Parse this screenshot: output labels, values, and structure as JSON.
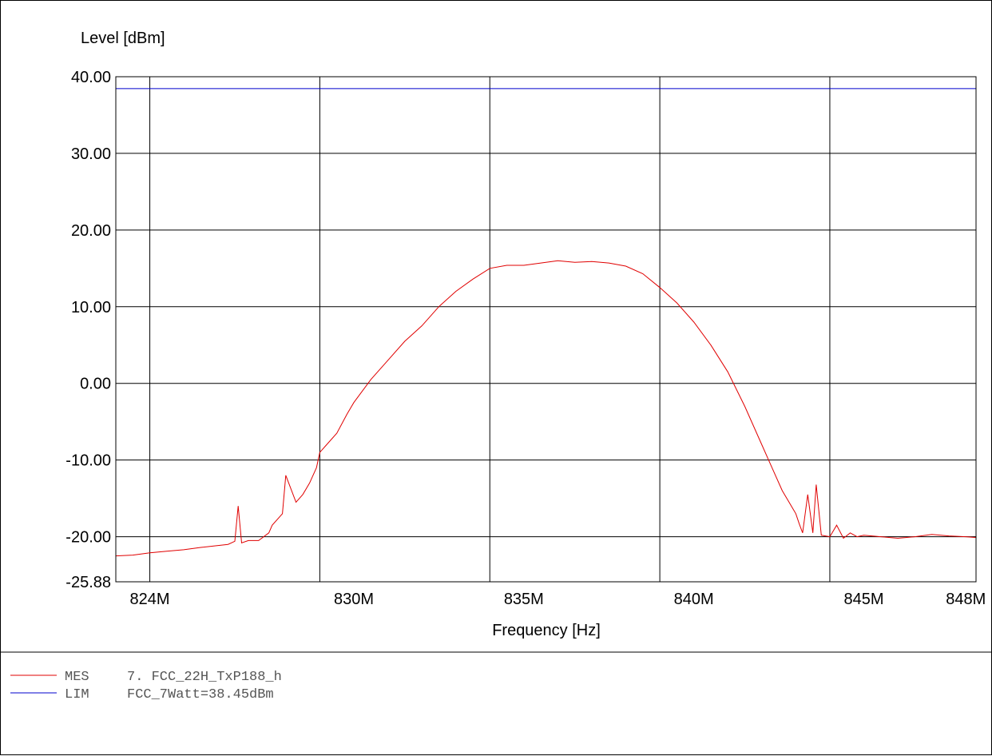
{
  "chart_data": {
    "type": "line",
    "ylabel": "Level [dBm]",
    "xlabel": "Frequency [Hz]",
    "ylim": [
      -25.88,
      40.0
    ],
    "xlim": [
      823.0,
      848.3
    ],
    "x_unit": "MHz",
    "y_ticks": [
      40.0,
      30.0,
      20.0,
      10.0,
      0.0,
      -10.0,
      -20.0,
      -25.88
    ],
    "y_tick_labels": [
      "40.00",
      "30.00",
      "20.00",
      "10.00",
      "0.00",
      "-10.00",
      "-20.00",
      "-25.88"
    ],
    "x_ticks": [
      824,
      830,
      835,
      840,
      845,
      848
    ],
    "x_tick_labels": [
      "824M",
      "830M",
      "835M",
      "840M",
      "845M",
      "848M"
    ],
    "x_gridlines": [
      824,
      829,
      834,
      839,
      844
    ],
    "y_gridlines": [
      30.0,
      20.0,
      10.0,
      0.0,
      -10.0,
      -20.0
    ],
    "grid": true,
    "legend_position": "bottom-left",
    "series": [
      {
        "name": "MES",
        "color": "#e00000",
        "x": [
          823.0,
          823.5,
          824.0,
          824.5,
          825.0,
          825.5,
          825.9,
          826.3,
          826.5,
          826.6,
          826.7,
          826.9,
          827.2,
          827.5,
          827.6,
          827.9,
          828.0,
          828.3,
          828.5,
          828.7,
          828.9,
          829.0,
          829.2,
          829.5,
          829.8,
          830.0,
          830.5,
          831.0,
          831.5,
          832.0,
          832.5,
          833.0,
          833.5,
          834.0,
          834.5,
          835.0,
          835.5,
          836.0,
          836.5,
          837.0,
          837.5,
          838.0,
          838.5,
          839.0,
          839.5,
          840.0,
          840.5,
          841.0,
          841.5,
          842.0,
          842.3,
          842.6,
          842.8,
          843.0,
          843.1,
          843.2,
          843.35,
          843.5,
          843.6,
          843.75,
          844.0,
          844.2,
          844.4,
          844.6,
          844.8,
          845.0,
          845.5,
          846.0,
          846.5,
          847.0,
          847.5,
          848.0,
          848.3
        ],
        "y": [
          -22.5,
          -22.4,
          -22.1,
          -21.9,
          -21.7,
          -21.4,
          -21.2,
          -21.0,
          -20.6,
          -16.0,
          -20.8,
          -20.5,
          -20.5,
          -19.5,
          -18.5,
          -17.0,
          -12.0,
          -15.5,
          -14.5,
          -13.0,
          -11.0,
          -9.0,
          -8.0,
          -6.5,
          -4.0,
          -2.5,
          0.5,
          3.0,
          5.5,
          7.5,
          10.0,
          12.0,
          13.6,
          15.0,
          15.4,
          15.4,
          15.7,
          16.0,
          15.8,
          15.9,
          15.7,
          15.3,
          14.3,
          12.5,
          10.5,
          8.0,
          5.0,
          1.5,
          -3.0,
          -8.0,
          -11.0,
          -14.0,
          -15.5,
          -17.0,
          -18.3,
          -19.5,
          -14.5,
          -19.5,
          -13.2,
          -19.8,
          -20.0,
          -18.5,
          -20.2,
          -19.5,
          -20.0,
          -19.8,
          -20.0,
          -20.2,
          -20.0,
          -19.7,
          -19.9,
          -20.0,
          -20.1
        ]
      },
      {
        "name": "LIM",
        "color": "#0000cc",
        "x": [
          823.0,
          848.3
        ],
        "y": [
          38.45,
          38.45
        ]
      }
    ]
  },
  "legend": {
    "entries": [
      {
        "label": "MES",
        "text": "7. FCC_22H_TxP188_h",
        "color": "#e00000"
      },
      {
        "label": "LIM",
        "text": "FCC_7Watt=38.45dBm",
        "color": "#0000cc"
      }
    ]
  }
}
